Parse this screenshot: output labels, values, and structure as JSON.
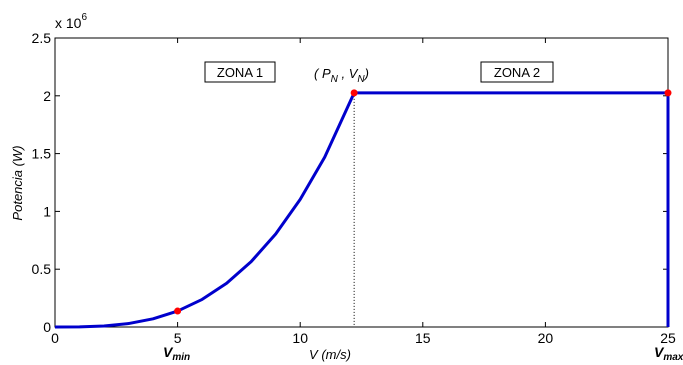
{
  "chart_data": {
    "type": "line",
    "title": "",
    "xlabel": "V (m/s)",
    "ylabel": "Potencia (W)",
    "y_multiplier_label": "x 10",
    "y_multiplier_exponent": "6",
    "xlim": [
      0,
      25
    ],
    "ylim": [
      0,
      2500000
    ],
    "xticks": [
      0,
      5,
      10,
      15,
      20,
      25
    ],
    "xtick_labels": [
      "0",
      "5",
      "10",
      "15",
      "20",
      "25"
    ],
    "yticks": [
      0,
      500000,
      1000000,
      1500000,
      2000000,
      2500000
    ],
    "ytick_labels": [
      "0",
      "0.5",
      "1",
      "1.5",
      "2",
      "2.5"
    ],
    "grid": false,
    "line_color": "#0000cc",
    "marker_color": "#ff0000",
    "series": [
      {
        "x": [
          0,
          1,
          2,
          3,
          4,
          5,
          6,
          7,
          8,
          9,
          10,
          11,
          12.2,
          25,
          25
        ],
        "y": [
          0,
          1100,
          8800,
          29800,
          70600,
          138000,
          238500,
          378700,
          565300,
          804900,
          1104100,
          1469600,
          2025000,
          2025000,
          0
        ]
      }
    ],
    "points": [
      {
        "x": 5,
        "y": 138000
      },
      {
        "x": 12.2,
        "y": 2025000
      },
      {
        "x": 25,
        "y": 2025000
      }
    ],
    "rated_speed_guide": {
      "x": 12.2,
      "y": 2025000
    },
    "annotations": {
      "zona1": "ZONA 1",
      "zona2": "ZONA 2",
      "rated_point": {
        "open": "( P",
        "p_sub": "N",
        "comma": " , V",
        "v_sub": "N",
        "close": ")"
      },
      "vmin": {
        "main": "V",
        "sub": "min"
      },
      "vmax": {
        "main": "V",
        "sub": "max"
      }
    }
  }
}
